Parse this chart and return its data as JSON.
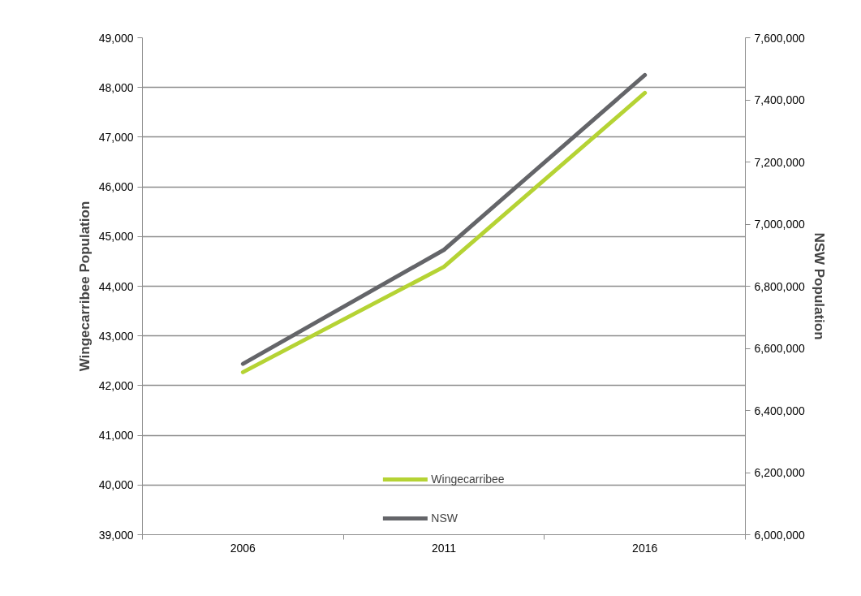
{
  "chart_data": {
    "type": "line",
    "categories": [
      "2006",
      "2011",
      "2016"
    ],
    "series": [
      {
        "name": "Wingecarribee",
        "color": "#b5d334",
        "values": [
          42270,
          44390,
          47890
        ]
      },
      {
        "name": "NSW",
        "color": "#646569",
        "values": [
          6550000,
          6917000,
          7480000
        ],
        "axis": "y2"
      }
    ],
    "ylabel": "Wingecarribee Population",
    "y2label": "NSW Population",
    "ylim": [
      39000,
      49000
    ],
    "yticks": [
      {
        "value": 39000,
        "label": "39,000"
      },
      {
        "value": 40000,
        "label": "40,000"
      },
      {
        "value": 41000,
        "label": "41,000"
      },
      {
        "value": 42000,
        "label": "42,000"
      },
      {
        "value": 43000,
        "label": "43,000"
      },
      {
        "value": 44000,
        "label": "44,000"
      },
      {
        "value": 45000,
        "label": "45,000"
      },
      {
        "value": 46000,
        "label": "46,000"
      },
      {
        "value": 47000,
        "label": "47,000"
      },
      {
        "value": 48000,
        "label": "48,000"
      },
      {
        "value": 49000,
        "label": "49,000"
      }
    ],
    "y2lim": [
      6000000,
      7600000
    ],
    "y2ticks": [
      {
        "value": 6000000,
        "label": "6,000,000"
      },
      {
        "value": 6200000,
        "label": "6,200,000"
      },
      {
        "value": 6400000,
        "label": "6,400,000"
      },
      {
        "value": 6600000,
        "label": "6,600,000"
      },
      {
        "value": 6800000,
        "label": "6,800,000"
      },
      {
        "value": 7000000,
        "label": "7,000,000"
      },
      {
        "value": 7200000,
        "label": "7,200,000"
      },
      {
        "value": 7400000,
        "label": "7,400,000"
      },
      {
        "value": 7600000,
        "label": "7,600,000"
      }
    ],
    "grid": "y",
    "legend": "bottom",
    "marker": "none",
    "line_style": "solid"
  }
}
